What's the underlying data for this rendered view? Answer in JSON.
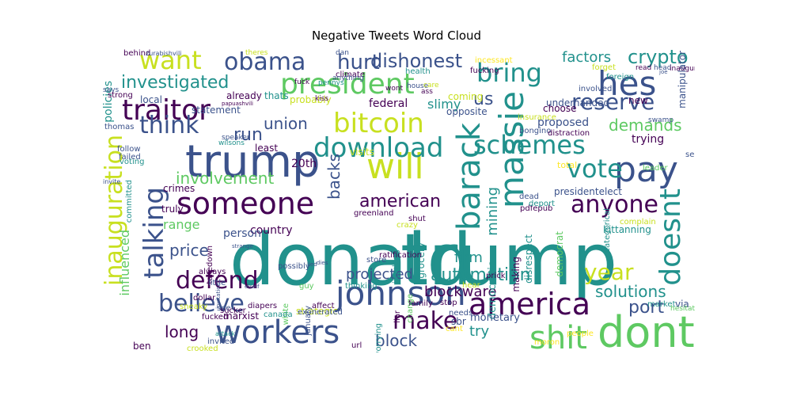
{
  "title": "Negative Tweets Word Cloud",
  "palette": {
    "c1": "#440154",
    "c2": "#3b528b",
    "c3": "#21918c",
    "c4": "#5ec962",
    "c5": "#c8e020",
    "c6": "#fde725"
  },
  "words": [
    {
      "text": "donald",
      "color": "c3"
    },
    {
      "text": "trump",
      "color": "c3"
    },
    {
      "text": "president",
      "color": "c4"
    },
    {
      "text": "trump",
      "color": "c2"
    },
    {
      "text": "will",
      "color": "c5"
    },
    {
      "text": "someone",
      "color": "c1"
    },
    {
      "text": "obama",
      "color": "c2"
    },
    {
      "text": "traitor",
      "color": "c1"
    },
    {
      "text": "hes",
      "color": "c2"
    },
    {
      "text": "pay",
      "color": "c2"
    },
    {
      "text": "bitcoin",
      "color": "c5"
    },
    {
      "text": "workers",
      "color": "c2"
    },
    {
      "text": "johnson",
      "color": "c2"
    },
    {
      "text": "america",
      "color": "c1"
    },
    {
      "text": "dont",
      "color": "c4"
    },
    {
      "text": "shit",
      "color": "c4"
    },
    {
      "text": "download",
      "color": "c3"
    },
    {
      "text": "schemes",
      "color": "c3"
    },
    {
      "text": "massie",
      "color": "c3"
    },
    {
      "text": "barack",
      "color": "c3"
    },
    {
      "text": "inauguration",
      "color": "c5"
    },
    {
      "text": "doesnt",
      "color": "c3"
    },
    {
      "text": "talking",
      "color": "c2"
    },
    {
      "text": "defend",
      "color": "c1"
    },
    {
      "text": "believe",
      "color": "c2"
    },
    {
      "text": "make",
      "color": "c1"
    },
    {
      "text": "want",
      "color": "c5"
    },
    {
      "text": "think",
      "color": "c2"
    },
    {
      "text": "bring",
      "color": "c3"
    },
    {
      "text": "reserve",
      "color": "c2"
    },
    {
      "text": "anyone",
      "color": "c1"
    },
    {
      "text": "vote",
      "color": "c3"
    },
    {
      "text": "year",
      "color": "c5"
    },
    {
      "text": "hurt",
      "color": "c2"
    },
    {
      "text": "dishonest",
      "color": "c2"
    },
    {
      "text": "crypto",
      "color": "c3"
    },
    {
      "text": "investigated",
      "color": "c3"
    },
    {
      "text": "union",
      "color": "c2"
    },
    {
      "text": "run",
      "color": "c2"
    },
    {
      "text": "demands",
      "color": "c4"
    },
    {
      "text": "involvement",
      "color": "c4"
    },
    {
      "text": "american",
      "color": "c1"
    },
    {
      "text": "backs",
      "color": "c2"
    },
    {
      "text": "automation",
      "color": "c3"
    },
    {
      "text": "solutions",
      "color": "c3"
    },
    {
      "text": "port",
      "color": "c2"
    },
    {
      "text": "blockware",
      "color": "c1"
    },
    {
      "text": "block",
      "color": "c2"
    },
    {
      "text": "long",
      "color": "c1"
    },
    {
      "text": "factors",
      "color": "c3"
    },
    {
      "text": "try",
      "color": "c3"
    },
    {
      "text": "us",
      "color": "c2"
    },
    {
      "text": "range",
      "color": "c4"
    },
    {
      "text": "price",
      "color": "c2"
    },
    {
      "text": "projected",
      "color": "c2"
    },
    {
      "text": "firm",
      "color": "c3"
    },
    {
      "text": "mining",
      "color": "c3"
    },
    {
      "text": "influenced",
      "color": "c4"
    },
    {
      "text": "20th",
      "color": "c1"
    },
    {
      "text": "federal",
      "color": "c1"
    },
    {
      "text": "slimy",
      "color": "c3"
    },
    {
      "text": "policies",
      "color": "c3"
    },
    {
      "text": "proposed",
      "color": "c2"
    },
    {
      "text": "trying",
      "color": "c1"
    },
    {
      "text": "underhanded",
      "color": "c2"
    },
    {
      "text": "disrespect",
      "color": "c3"
    },
    {
      "text": "presidentelect",
      "color": "c2"
    },
    {
      "text": "manipulator",
      "color": "c2"
    },
    {
      "text": "crimes",
      "color": "c1"
    },
    {
      "text": "truly",
      "color": "c1"
    },
    {
      "text": "country",
      "color": "c1"
    },
    {
      "text": "person",
      "color": "c2"
    },
    {
      "text": "democratic",
      "color": "c3"
    },
    {
      "text": "monetary",
      "color": "c2"
    },
    {
      "text": "marxist",
      "color": "c1"
    },
    {
      "text": "strategic",
      "color": "c5"
    },
    {
      "text": "sbr",
      "color": "c2"
    },
    {
      "text": "thomas",
      "color": "c2"
    },
    {
      "text": "ben",
      "color": "c1"
    },
    {
      "text": "via",
      "color": "c2"
    },
    {
      "text": "kittanning",
      "color": "c3"
    },
    {
      "text": "democrat",
      "color": "c4"
    },
    {
      "text": "making",
      "color": "c1"
    },
    {
      "text": "grocery",
      "color": "c3"
    },
    {
      "text": "choose",
      "color": "c1"
    },
    {
      "text": "total",
      "color": "c6"
    },
    {
      "text": "sept",
      "color": "c2"
    },
    {
      "text": "local",
      "color": "c2"
    },
    {
      "text": "statement",
      "color": "c2"
    },
    {
      "text": "already",
      "color": "c1"
    },
    {
      "text": "probably",
      "color": "c5"
    },
    {
      "text": "thats",
      "color": "c3"
    },
    {
      "text": "least",
      "color": "c1"
    },
    {
      "text": "visits",
      "color": "c5"
    },
    {
      "text": "opposite",
      "color": "c2"
    },
    {
      "text": "coming",
      "color": "c5"
    },
    {
      "text": "climate",
      "color": "c1"
    },
    {
      "text": "incessant",
      "color": "c6"
    },
    {
      "text": "health",
      "color": "c3"
    },
    {
      "text": "fucking",
      "color": "c1"
    },
    {
      "text": "involved",
      "color": "c2"
    },
    {
      "text": "new",
      "color": "c1"
    },
    {
      "text": "forget",
      "color": "c5"
    },
    {
      "text": "foreign",
      "color": "c3"
    },
    {
      "text": "insurance",
      "color": "c5"
    },
    {
      "text": "bongino",
      "color": "c2"
    },
    {
      "text": "distraction",
      "color": "c1"
    },
    {
      "text": "leader",
      "color": "c4"
    },
    {
      "text": "pdfepub",
      "color": "c1"
    },
    {
      "text": "deport",
      "color": "c3"
    },
    {
      "text": "dead",
      "color": "c2"
    },
    {
      "text": "complain",
      "color": "c5"
    },
    {
      "text": "categorical",
      "color": "c3"
    },
    {
      "text": "market",
      "color": "c3"
    },
    {
      "text": "hesitated",
      "color": "c4"
    },
    {
      "text": "prick",
      "color": "c1"
    },
    {
      "text": "hear",
      "color": "c5"
    },
    {
      "text": "needs",
      "color": "c2"
    },
    {
      "text": "cant",
      "color": "c6"
    },
    {
      "text": "people",
      "color": "c6"
    },
    {
      "text": "moron",
      "color": "c6"
    },
    {
      "text": "stop",
      "color": "c1"
    },
    {
      "text": "family",
      "color": "c1"
    },
    {
      "text": "worrying",
      "color": "c3"
    },
    {
      "text": "url",
      "color": "c1"
    },
    {
      "text": "exonerated",
      "color": "c2"
    },
    {
      "text": "diapers",
      "color": "c1"
    },
    {
      "text": "white",
      "color": "c4"
    },
    {
      "text": "canada",
      "color": "c3"
    },
    {
      "text": "january",
      "color": "c2"
    },
    {
      "text": "affect",
      "color": "c1"
    },
    {
      "text": "guy",
      "color": "c4"
    },
    {
      "text": "thinking",
      "color": "c3"
    },
    {
      "text": "store",
      "color": "c2"
    },
    {
      "text": "liar",
      "color": "c1"
    },
    {
      "text": "change",
      "color": "c4"
    },
    {
      "text": "insulting",
      "color": "c3"
    },
    {
      "text": "ratification",
      "color": "c1"
    },
    {
      "text": "shut",
      "color": "c1"
    },
    {
      "text": "greenland",
      "color": "c1"
    },
    {
      "text": "crazy",
      "color": "c5"
    },
    {
      "text": "possibly",
      "color": "c2"
    },
    {
      "text": "always",
      "color": "c1"
    },
    {
      "text": "dollar",
      "color": "c1"
    },
    {
      "text": "takedown",
      "color": "c1"
    },
    {
      "text": "little",
      "color": "c2"
    },
    {
      "text": "sneaky",
      "color": "c5"
    },
    {
      "text": "see",
      "color": "c2"
    },
    {
      "text": "sucker",
      "color": "c1"
    },
    {
      "text": "fucked",
      "color": "c1"
    },
    {
      "text": "attack",
      "color": "c3"
    },
    {
      "text": "invited",
      "color": "c2"
    },
    {
      "text": "attend",
      "color": "c2"
    },
    {
      "text": "crooked",
      "color": "c5"
    },
    {
      "text": "voting",
      "color": "c3"
    },
    {
      "text": "committed",
      "color": "c3"
    },
    {
      "text": "failed",
      "color": "c2"
    },
    {
      "text": "follow",
      "color": "c2"
    },
    {
      "text": "wilsons",
      "color": "c3"
    },
    {
      "text": "speaker",
      "color": "c2"
    },
    {
      "text": "invite",
      "color": "c2"
    },
    {
      "text": "says",
      "color": "c2"
    },
    {
      "text": "strong",
      "color": "c1"
    },
    {
      "text": "behind",
      "color": "c1"
    },
    {
      "text": "zurabishvili",
      "color": "c2"
    },
    {
      "text": "theres",
      "color": "c5"
    },
    {
      "text": "dan",
      "color": "c2"
    },
    {
      "text": "papuashvili",
      "color": "c1"
    },
    {
      "text": "anything",
      "color": "c2"
    },
    {
      "text": "fuck",
      "color": "c1"
    },
    {
      "text": "pennys",
      "color": "c3"
    },
    {
      "text": "kiss",
      "color": "c1"
    },
    {
      "text": "house",
      "color": "c2"
    },
    {
      "text": "wont",
      "color": "c1"
    },
    {
      "text": "care",
      "color": "c5"
    },
    {
      "text": "ass",
      "color": "c1"
    },
    {
      "text": "swamp",
      "color": "c2"
    },
    {
      "text": "read",
      "color": "c1"
    },
    {
      "text": "head",
      "color": "c2"
    },
    {
      "text": "inaugurationsaidits",
      "color": "c1"
    },
    {
      "text": "joe",
      "color": "c2"
    },
    {
      "text": "invitation",
      "color": "c2"
    },
    {
      "text": "elself",
      "color": "c2"
    },
    {
      "text": "dies",
      "color": "c2"
    },
    {
      "text": "lied",
      "color": "c2"
    },
    {
      "text": "strange",
      "color": "c2"
    }
  ]
}
